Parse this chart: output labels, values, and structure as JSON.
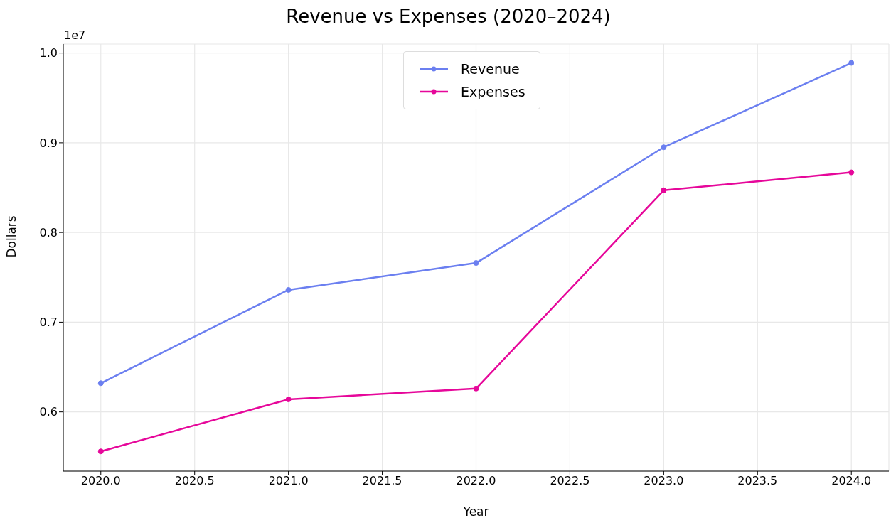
{
  "chart_data": {
    "type": "line",
    "title": "Revenue vs Expenses (2020–2024)",
    "xlabel": "Year",
    "ylabel": "Dollars",
    "annotations": [
      "1e7"
    ],
    "x": [
      2020,
      2021,
      2022,
      2023,
      2024
    ],
    "series": [
      {
        "name": "Revenue",
        "color": "#6b7ff0",
        "values": [
          0.632,
          0.736,
          0.766,
          0.895,
          0.989
        ]
      },
      {
        "name": "Expenses",
        "color": "#e6079a",
        "values": [
          0.556,
          0.614,
          0.626,
          0.847,
          0.867
        ]
      }
    ],
    "xlim": [
      2019.8,
      2024.2
    ],
    "xticks": [
      {
        "value": 2020,
        "label": "2020.0"
      },
      2020.5,
      {
        "value": 2021,
        "label": "2021.0"
      },
      2021.5,
      {
        "value": 2022,
        "label": "2022.0"
      },
      2022.5,
      {
        "value": 2023,
        "label": "2023.0"
      },
      2023.5,
      {
        "value": 2024,
        "label": "2024.0"
      }
    ],
    "ylim": [
      0.534,
      1.01
    ],
    "yticks": [
      0.6,
      0.7,
      0.8,
      0.9,
      {
        "value": 1,
        "label": "1.0"
      }
    ],
    "grid": true,
    "legend": "top",
    "marker": "circle",
    "line_style": "solid"
  }
}
